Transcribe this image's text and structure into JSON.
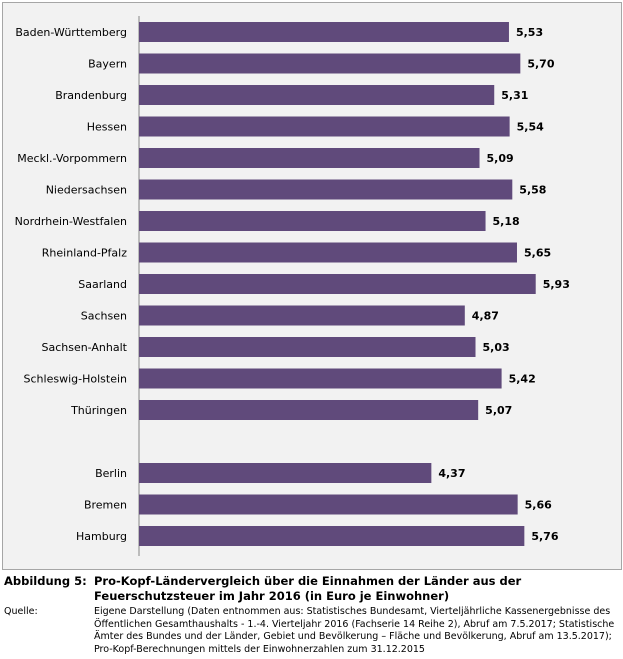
{
  "chart_data": {
    "type": "bar",
    "orientation": "horizontal",
    "categories": [
      "Baden-Württemberg",
      "Bayern",
      "Brandenburg",
      "Hessen",
      "Meckl.-Vorpommern",
      "Niedersachsen",
      "Nordrhein-Westfalen",
      "Rheinland-Pfalz",
      "Saarland",
      "Sachsen",
      "Sachsen-Anhalt",
      "Schleswig-Holstein",
      "Thüringen",
      "Berlin",
      "Bremen",
      "Hamburg"
    ],
    "values": [
      5.53,
      5.7,
      5.31,
      5.54,
      5.09,
      5.58,
      5.18,
      5.65,
      5.93,
      4.87,
      5.03,
      5.42,
      5.07,
      4.37,
      5.66,
      5.76
    ],
    "labels": [
      "5,53",
      "5,70",
      "5,31",
      "5,54",
      "5,09",
      "5,58",
      "5,18",
      "5,65",
      "5,93",
      "4,87",
      "5,03",
      "5,42",
      "5,07",
      "4,37",
      "5,66",
      "5,76"
    ],
    "bar_color": "#604a7b",
    "background": "#f2f2f2",
    "grid": false,
    "xlim": [
      0,
      6.5
    ]
  },
  "caption": {
    "figure_label": "Abbildung 5:",
    "title": "Pro-Kopf-Ländervergleich über die Einnahmen der Länder aus der Feuerschutzsteuer im Jahr 2016 (in Euro je Einwohner)",
    "source_label": "Quelle:",
    "source_text": "Eigene Darstellung (Daten entnommen aus: Statistisches Bundesamt, Vierteljährliche Kassenergebnisse des Öffentlichen Gesamthaushalts - 1.-4. Vierteljahr 2016 (Fachserie 14 Reihe 2), Abruf am 7.5.2017; Statistische Ämter des Bundes und der Länder, Gebiet und Bevölkerung – Fläche und Bevölkerung, Abruf am 13.5.2017); Pro-Kopf-Berechnungen mittels der Einwohnerzahlen zum 31.12.2015"
  }
}
